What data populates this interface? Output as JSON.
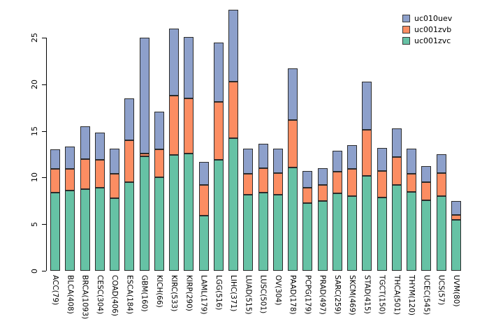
{
  "chart_data": {
    "type": "bar",
    "stacked": true,
    "title": "",
    "xlabel": "",
    "ylabel": "",
    "ylim": [
      0,
      28
    ],
    "yticks": [
      0,
      5,
      10,
      15,
      20,
      25
    ],
    "grid": false,
    "categories": [
      "ACC(79)",
      "BLCA(408)",
      "BRCA(1093)",
      "CESC(304)",
      "COAD(406)",
      "ESCA(184)",
      "GBM(160)",
      "KICH(66)",
      "KIRC(533)",
      "KIRP(290)",
      "LAML(179)",
      "LGG(516)",
      "LIHC(371)",
      "LUAD(515)",
      "LUSC(501)",
      "OV(304)",
      "PAAD(178)",
      "PCPG(179)",
      "PRAD(497)",
      "SARC(259)",
      "SKCM(469)",
      "STAD(415)",
      "TGCT(150)",
      "THCA(501)",
      "THYM(120)",
      "UCEC(545)",
      "UCS(57)",
      "UVM(80)"
    ],
    "series": [
      {
        "name": "uc001zvc",
        "color": "#66c2a5",
        "values": [
          8.4,
          8.6,
          8.8,
          8.9,
          7.8,
          9.5,
          12.3,
          10.0,
          12.4,
          12.6,
          5.9,
          11.9,
          14.2,
          8.2,
          8.4,
          8.2,
          11.1,
          7.3,
          7.5,
          8.3,
          8.0,
          10.2,
          7.9,
          9.2,
          8.5,
          7.6,
          8.0,
          5.5
        ]
      },
      {
        "name": "uc001zvb",
        "color": "#fc8d62",
        "values": [
          2.5,
          2.3,
          3.2,
          3.0,
          2.6,
          4.5,
          0.3,
          3.0,
          6.4,
          5.9,
          3.3,
          6.2,
          6.1,
          2.2,
          2.6,
          2.3,
          5.1,
          1.6,
          1.7,
          2.3,
          2.9,
          4.9,
          2.8,
          3.0,
          1.9,
          1.9,
          2.5,
          0.5
        ]
      },
      {
        "name": "uc010uev",
        "color": "#8da0cb",
        "values": [
          2.1,
          2.4,
          3.5,
          2.9,
          2.7,
          4.5,
          12.4,
          4.1,
          7.2,
          6.6,
          2.5,
          6.4,
          7.7,
          2.7,
          2.6,
          2.6,
          5.5,
          1.8,
          1.8,
          2.3,
          2.6,
          5.2,
          2.5,
          3.1,
          2.7,
          1.7,
          2.0,
          1.5
        ]
      }
    ],
    "legend": {
      "position": "top-right",
      "entries": [
        {
          "label": "uc010uev",
          "color": "#8da0cb"
        },
        {
          "label": "uc001zvb",
          "color": "#fc8d62"
        },
        {
          "label": "uc001zvc",
          "color": "#66c2a5"
        }
      ]
    }
  }
}
